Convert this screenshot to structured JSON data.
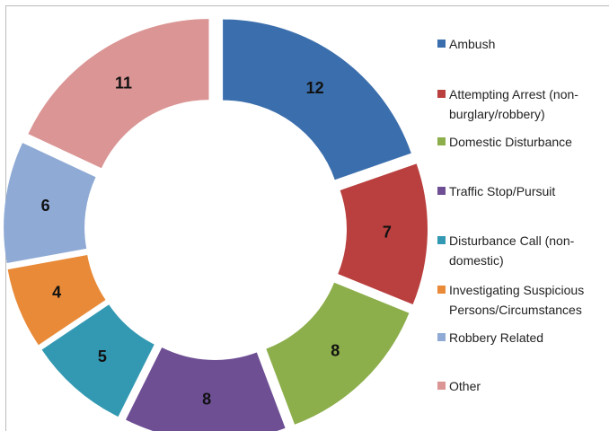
{
  "chart_data": {
    "type": "donut",
    "categories": [
      "Ambush",
      "Attempting Arrest (non-burglary/robbery)",
      "Domestic Disturbance",
      "Traffic Stop/Pursuit",
      "Disturbance Call (non-domestic)",
      "Investigating Suspicious Persons/Circumstances",
      "Robbery Related",
      "Other"
    ],
    "values": [
      12,
      7,
      8,
      8,
      5,
      4,
      6,
      11
    ],
    "colors": [
      "#3b6eac",
      "#b9403e",
      "#8cae4b",
      "#6e4f94",
      "#3399b2",
      "#e88a38",
      "#8faad4",
      "#da9594"
    ],
    "legend": "right"
  }
}
